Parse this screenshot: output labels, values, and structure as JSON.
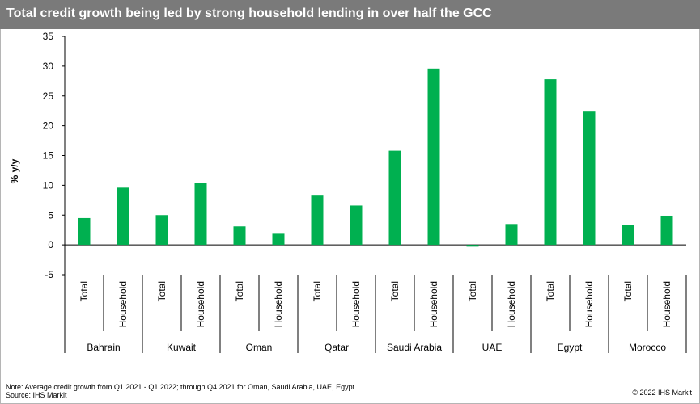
{
  "title": "Total credit growth being led by strong household lending in over half the GCC",
  "chart_data": {
    "type": "bar",
    "title": "Total credit growth being led by strong household lending in over half the GCC",
    "ylabel": "% y/y",
    "xlabel": "",
    "ylim": [
      -5,
      35
    ],
    "yticks": [
      -5,
      0,
      5,
      10,
      15,
      20,
      25,
      30,
      35
    ],
    "grid": false,
    "legend": "none",
    "bar_color": "#00b050",
    "groups": [
      "Bahrain",
      "Kuwait",
      "Oman",
      "Qatar",
      "Saudi Arabia",
      "UAE",
      "Egypt",
      "Morocco"
    ],
    "subcategories": [
      "Total",
      "Household"
    ],
    "categories": [
      "Bahrain Total",
      "Bahrain Household",
      "Kuwait Total",
      "Kuwait Household",
      "Oman Total",
      "Oman Household",
      "Qatar Total",
      "Qatar Household",
      "Saudi Arabia Total",
      "Saudi Arabia Household",
      "UAE Total",
      "UAE Household",
      "Egypt Total",
      "Egypt Household",
      "Morocco Total",
      "Morocco Household"
    ],
    "values": [
      4.5,
      9.6,
      5.0,
      10.4,
      3.1,
      2.0,
      8.4,
      6.6,
      15.8,
      29.6,
      -0.3,
      3.5,
      27.8,
      22.5,
      3.3,
      4.9
    ]
  },
  "footer": {
    "note": "Note: Average credit growth from Q1 2021 - Q1 2022; through Q4 2021 for Oman, Saudi Arabia, UAE, Egypt",
    "source": "Source: IHS Markit",
    "copyright": "© 2022  IHS Markit"
  }
}
